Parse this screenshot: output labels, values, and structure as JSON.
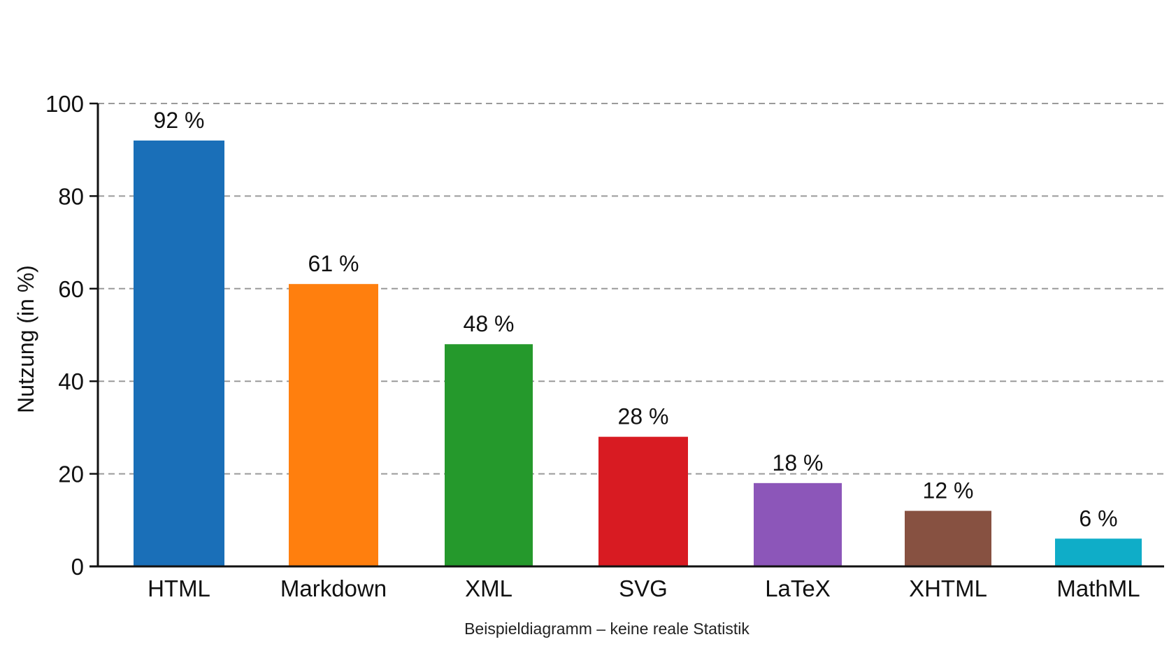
{
  "chart_data": {
    "type": "bar",
    "categories": [
      "HTML",
      "Markdown",
      "XML",
      "SVG",
      "LaTeX",
      "XHTML",
      "MathML"
    ],
    "values": [
      92,
      61,
      48,
      28,
      18,
      12,
      6
    ],
    "data_labels": [
      "92 %",
      "61 %",
      "48 %",
      "28 %",
      "18 %",
      "12 %",
      "6 %"
    ],
    "colors": [
      "#1a6fb8",
      "#ff7f0e",
      "#25992c",
      "#d81b22",
      "#8c56b9",
      "#875141",
      "#0fadc8"
    ],
    "title": "",
    "xlabel": "",
    "ylabel": "Nutzung (in %)",
    "ylim": [
      0,
      100
    ],
    "yticks": [
      0,
      20,
      40,
      60,
      80,
      100
    ],
    "grid": true,
    "legend": "none",
    "caption": "Beispieldiagramm – keine reale Statistik"
  }
}
